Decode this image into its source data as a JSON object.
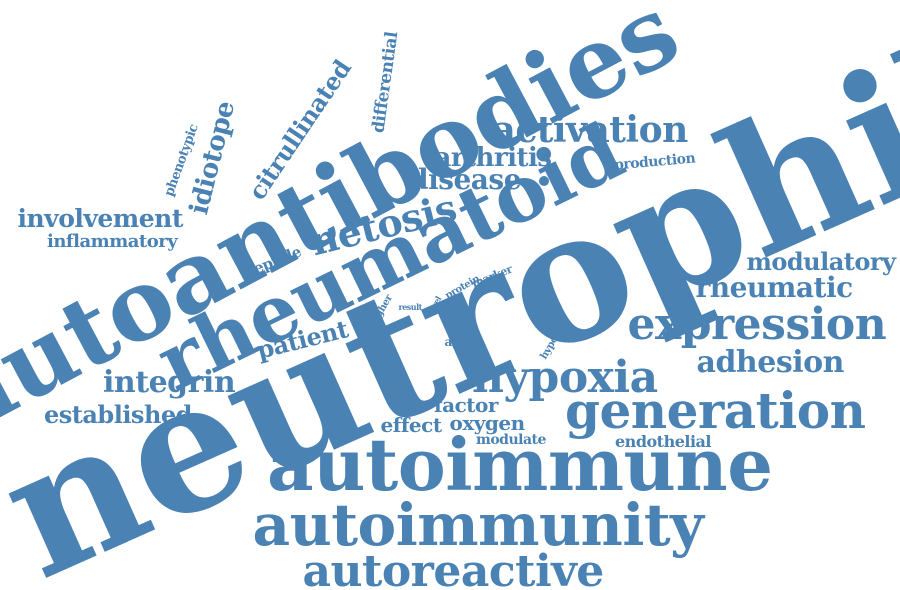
{
  "color": "#4a82b4",
  "background": "#ffffff",
  "words": [
    "neutrophil",
    "autoantibodies",
    "rheumatoid",
    "autoimmune",
    "autoimmunity",
    "autoreactive",
    "generation",
    "hypoxia",
    "expression",
    "netosis",
    "activation",
    "integrin",
    "adhesion",
    "rheumatic",
    "modulatory",
    "arthritis",
    "disease",
    "involvement",
    "inflammatory",
    "established",
    "patient",
    "factor",
    "oxygen",
    "effect",
    "modulate",
    "endothelial",
    "citrullinated",
    "idiotope",
    "phenotypic",
    "differential",
    "production",
    "peptide",
    "marker",
    "protein",
    "role",
    "higher",
    "result",
    "level",
    "cell",
    "ards",
    "hypoxic"
  ]
}
